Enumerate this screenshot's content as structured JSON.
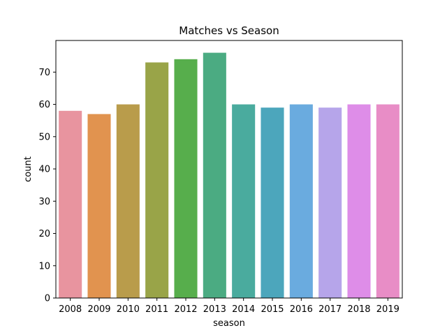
{
  "chart_data": {
    "type": "bar",
    "title": "Matches vs Season",
    "xlabel": "season",
    "ylabel": "count",
    "categories": [
      "2008",
      "2009",
      "2010",
      "2011",
      "2012",
      "2013",
      "2014",
      "2015",
      "2016",
      "2017",
      "2018",
      "2019"
    ],
    "values": [
      58,
      57,
      60,
      73,
      74,
      76,
      60,
      59,
      60,
      59,
      60,
      60
    ],
    "colors": [
      "#e8949f",
      "#e1934f",
      "#b99c4b",
      "#99a448",
      "#57ae4c",
      "#4bab82",
      "#4aab9e",
      "#4ca6bc",
      "#6aabdf",
      "#b6a5ea",
      "#de8de8",
      "#e88dc6"
    ],
    "ylim": [
      0,
      79.8
    ],
    "yticks": [
      0,
      10,
      20,
      30,
      40,
      50,
      60,
      70
    ],
    "grid": false,
    "legend": "none"
  }
}
